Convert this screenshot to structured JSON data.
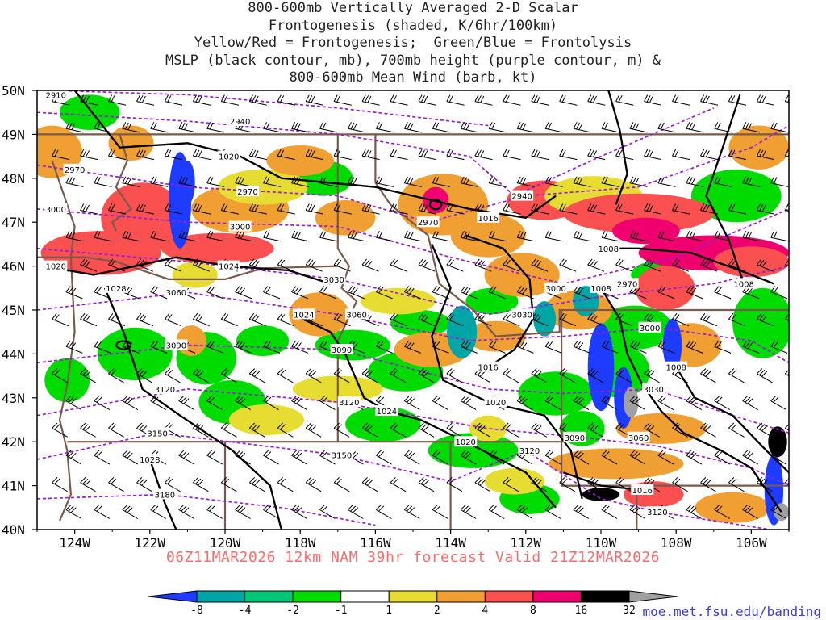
{
  "title": {
    "line1": "800-600mb Vertically Averaged 2-D Scalar",
    "line2": "Frontogenesis (shaded, K/6hr/100km)",
    "line3": "Yellow/Red = Frontogenesis;  Green/Blue = Frontolysis",
    "line4": "MSLP (black contour, mb), 700mb height (purple contour, m) &",
    "line5": "800-600mb Mean Wind (barb, kt)"
  },
  "valid_line": "06Z11MAR2026 12km NAM 39hr forecast Valid 21Z12MAR2026",
  "credit": "moe.met.fsu.edu/banding",
  "map": {
    "lat_labels": [
      "50N",
      "49N",
      "48N",
      "47N",
      "46N",
      "45N",
      "44N",
      "43N",
      "42N",
      "41N",
      "40N"
    ],
    "lon_labels": [
      "124W",
      "122W",
      "120W",
      "118W",
      "116W",
      "114W",
      "112W",
      "110W",
      "108W",
      "106W"
    ],
    "lon_range": [
      -125,
      -105
    ],
    "lat_range": [
      40,
      50
    ],
    "mslp_labels": [
      {
        "text": "1020",
        "lon": -124.5,
        "lat": 46.0
      },
      {
        "text": "1028",
        "lon": -122.9,
        "lat": 45.5
      },
      {
        "text": "1028",
        "lon": -122.0,
        "lat": 41.6
      },
      {
        "text": "1024",
        "lon": -119.9,
        "lat": 46.0
      },
      {
        "text": "1020",
        "lon": -119.9,
        "lat": 48.5
      },
      {
        "text": "1024",
        "lon": -117.9,
        "lat": 44.9
      },
      {
        "text": "1024",
        "lon": -115.7,
        "lat": 42.7
      },
      {
        "text": "1016",
        "lon": -113.0,
        "lat": 47.1
      },
      {
        "text": "1016",
        "lon": -113.0,
        "lat": 43.7
      },
      {
        "text": "1020",
        "lon": -112.8,
        "lat": 42.9
      },
      {
        "text": "1020",
        "lon": -113.6,
        "lat": 42.0
      },
      {
        "text": "1008",
        "lon": -109.8,
        "lat": 46.4
      },
      {
        "text": "1008",
        "lon": -110.0,
        "lat": 45.5
      },
      {
        "text": "1008",
        "lon": -108.0,
        "lat": 43.7
      },
      {
        "text": "1008",
        "lon": -106.2,
        "lat": 45.6
      },
      {
        "text": "1016",
        "lon": -108.9,
        "lat": 40.9
      }
    ],
    "height_labels": [
      {
        "text": "2910",
        "lon": -124.5,
        "lat": 49.9
      },
      {
        "text": "2940",
        "lon": -119.6,
        "lat": 49.3
      },
      {
        "text": "2970",
        "lon": -124.0,
        "lat": 48.2
      },
      {
        "text": "2970",
        "lon": -119.4,
        "lat": 47.7
      },
      {
        "text": "3000",
        "lon": -124.5,
        "lat": 47.3
      },
      {
        "text": "3000",
        "lon": -119.6,
        "lat": 46.9
      },
      {
        "text": "3060",
        "lon": -121.3,
        "lat": 45.4
      },
      {
        "text": "3090",
        "lon": -121.3,
        "lat": 44.2
      },
      {
        "text": "3120",
        "lon": -121.6,
        "lat": 43.2
      },
      {
        "text": "3150",
        "lon": -121.8,
        "lat": 42.2
      },
      {
        "text": "3180",
        "lon": -121.6,
        "lat": 40.8
      },
      {
        "text": "3030",
        "lon": -117.1,
        "lat": 45.7
      },
      {
        "text": "3060",
        "lon": -116.5,
        "lat": 44.9
      },
      {
        "text": "3090",
        "lon": -116.9,
        "lat": 44.1
      },
      {
        "text": "3120",
        "lon": -116.7,
        "lat": 42.9
      },
      {
        "text": "3150",
        "lon": -116.9,
        "lat": 41.7
      },
      {
        "text": "2970",
        "lon": -114.6,
        "lat": 47.0
      },
      {
        "text": "2940",
        "lon": -112.1,
        "lat": 47.6
      },
      {
        "text": "3000",
        "lon": -111.2,
        "lat": 45.5
      },
      {
        "text": "3030",
        "lon": -112.1,
        "lat": 44.9
      },
      {
        "text": "3120",
        "lon": -111.9,
        "lat": 41.8
      },
      {
        "text": "3090",
        "lon": -110.7,
        "lat": 42.1
      },
      {
        "text": "2970",
        "lon": -109.3,
        "lat": 45.6
      },
      {
        "text": "3000",
        "lon": -108.7,
        "lat": 44.6
      },
      {
        "text": "3030",
        "lon": -108.6,
        "lat": 43.2
      },
      {
        "text": "3060",
        "lon": -109.0,
        "lat": 42.1
      },
      {
        "text": "3120",
        "lon": -108.5,
        "lat": 40.4
      }
    ]
  },
  "colorbar": {
    "labels": [
      "-8",
      "-4",
      "-2",
      "-1",
      "1",
      "2",
      "4",
      "8",
      "16",
      "32"
    ],
    "colors": [
      "#1e3cff",
      "#00a5a5",
      "#00c878",
      "#00dc00",
      "#ffffff",
      "#e6dc32",
      "#f0a032",
      "#fa5050",
      "#f0006e",
      "#000000",
      "#a0a0a0"
    ]
  },
  "colors": {
    "mslp": "#000000",
    "height": "#9a1cd6",
    "borders": "#7a5a4a",
    "barbs": "#000000"
  }
}
